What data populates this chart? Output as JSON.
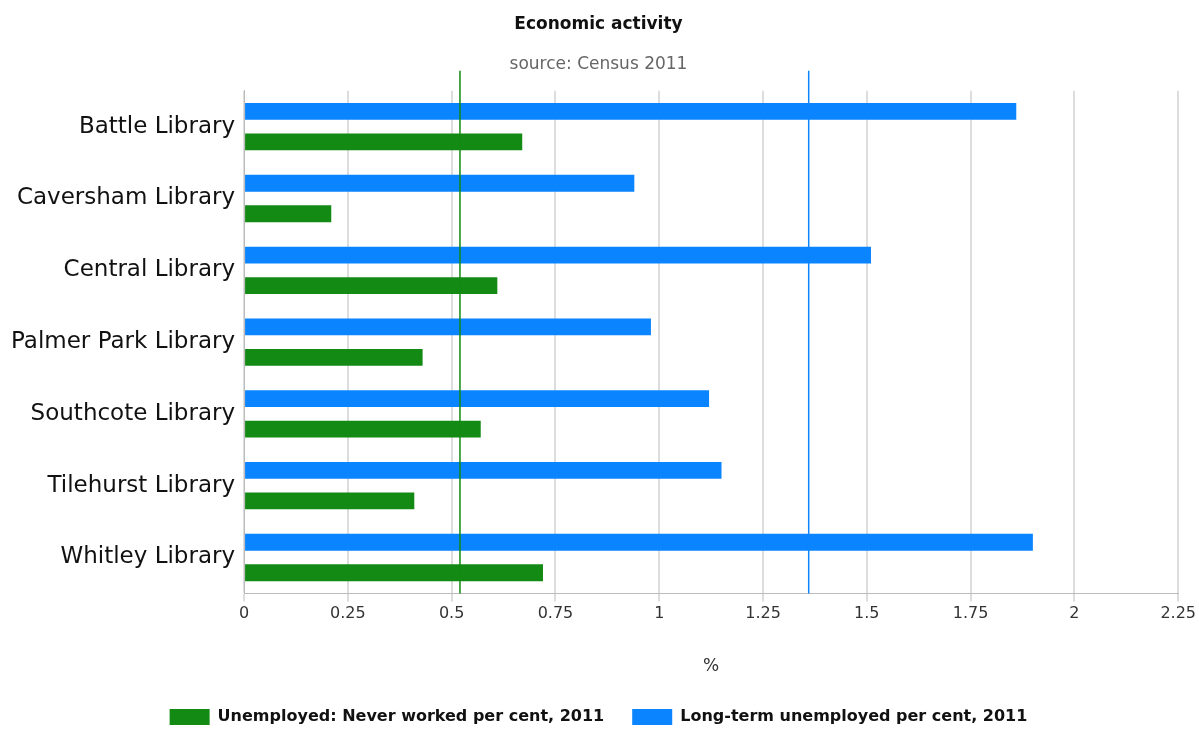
{
  "chart_data": {
    "type": "bar",
    "orientation": "horizontal",
    "title": "Economic activity",
    "subtitle": "source: Census 2011",
    "xlabel": "%",
    "categories": [
      "Battle Library",
      "Caversham Library",
      "Central Library",
      "Palmer Park Library",
      "Southcote Library",
      "Tilehurst Library",
      "Whitley Library"
    ],
    "series": [
      {
        "name": "Long-term unemployed per cent, 2011",
        "color": "#0a84ff",
        "values": [
          1.86,
          0.94,
          1.51,
          0.98,
          1.12,
          1.15,
          1.9
        ]
      },
      {
        "name": "Unemployed: Never worked per cent, 2011",
        "color": "#138a13",
        "values": [
          0.67,
          0.21,
          0.61,
          0.43,
          0.57,
          0.41,
          0.72
        ]
      }
    ],
    "xlim": [
      0,
      2.25
    ],
    "xticks": [
      0,
      0.25,
      0.5,
      0.75,
      1,
      1.25,
      1.5,
      1.75,
      2,
      2.25
    ],
    "ref_lines": [
      {
        "axis": "x",
        "value": 0.52,
        "color": "#138a13"
      },
      {
        "axis": "x",
        "value": 1.36,
        "color": "#0a84ff"
      }
    ],
    "grid": "x",
    "legend": "bottom"
  }
}
